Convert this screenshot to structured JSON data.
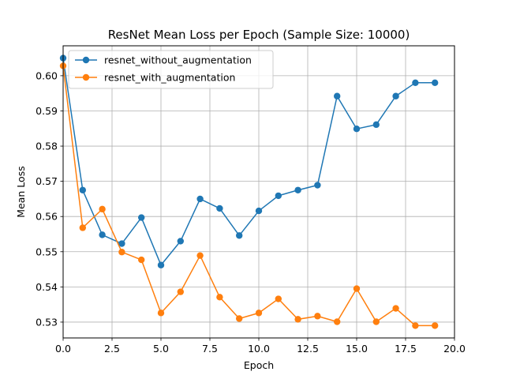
{
  "chart_data": {
    "type": "line",
    "title": "ResNet Mean Loss per Epoch (Sample Size: 10000)",
    "xlabel": "Epoch",
    "ylabel": "Mean Loss",
    "xlim": [
      0.0,
      20.0
    ],
    "ylim": [
      0.5255,
      0.6085
    ],
    "xticks": [
      0.0,
      2.5,
      5.0,
      7.5,
      10.0,
      12.5,
      15.0,
      17.5,
      20.0
    ],
    "xtick_labels": [
      "0.0",
      "2.5",
      "5.0",
      "7.5",
      "10.0",
      "12.5",
      "15.0",
      "17.5",
      "20.0"
    ],
    "yticks": [
      0.53,
      0.54,
      0.55,
      0.56,
      0.57,
      0.58,
      0.59,
      0.6
    ],
    "ytick_labels": [
      "0.53",
      "0.54",
      "0.55",
      "0.56",
      "0.57",
      "0.58",
      "0.59",
      "0.60"
    ],
    "grid": true,
    "legend_position": "top-left",
    "x": [
      0,
      1,
      2,
      3,
      4,
      5,
      6,
      7,
      8,
      9,
      10,
      11,
      12,
      13,
      14,
      15,
      16,
      17,
      18,
      19
    ],
    "series": [
      {
        "name": "resnet_without_augmentation",
        "color": "#1f77b4",
        "values": [
          0.605,
          0.5675,
          0.5548,
          0.5523,
          0.5597,
          0.5462,
          0.553,
          0.565,
          0.5623,
          0.5546,
          0.5616,
          0.5659,
          0.5675,
          0.5689,
          0.5942,
          0.5849,
          0.5861,
          0.5942,
          0.598,
          0.598
        ]
      },
      {
        "name": "resnet_with_augmentation",
        "color": "#ff7f0e",
        "values": [
          0.6028,
          0.5568,
          0.5621,
          0.5499,
          0.5477,
          0.5326,
          0.5386,
          0.5489,
          0.5371,
          0.531,
          0.5326,
          0.5366,
          0.5308,
          0.5317,
          0.5301,
          0.5395,
          0.5301,
          0.5339,
          0.529,
          0.529
        ]
      }
    ]
  }
}
